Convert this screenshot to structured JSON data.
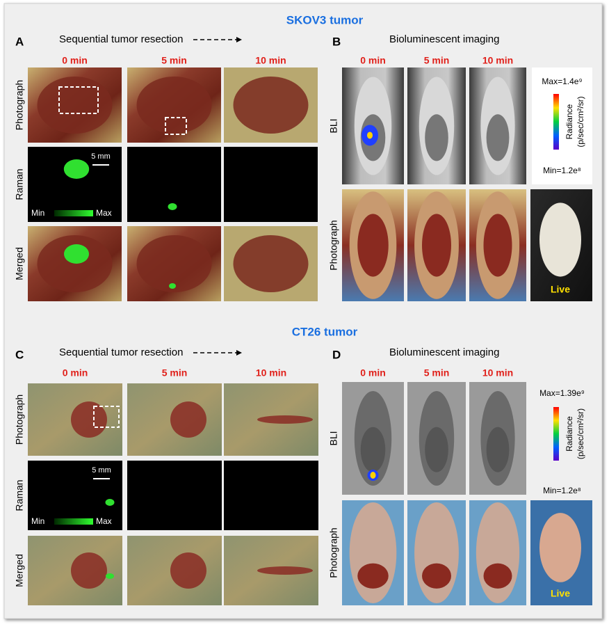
{
  "sections": [
    {
      "title": "SKOV3 tumor",
      "left": {
        "letter": "A",
        "heading": "Sequential tumor resection",
        "columns": [
          "0 min",
          "5 min",
          "10 min"
        ],
        "rows": [
          "Photograph",
          "Raman",
          "Merged"
        ],
        "scale_bar": "5 mm",
        "colorbar": [
          "Min",
          "Max"
        ]
      },
      "right": {
        "letter": "B",
        "heading": "Bioluminescent imaging",
        "columns": [
          "0 min",
          "5 min",
          "10 min"
        ],
        "rows": [
          "BLI",
          "Photograph"
        ],
        "max": "Max=1.4e⁹",
        "min": "Min=1.2e⁸",
        "unit": "Radiance",
        "unit_detail": "(p/sec/cm²/sr)",
        "live": "Live"
      }
    },
    {
      "title": "CT26 tumor",
      "left": {
        "letter": "C",
        "heading": "Sequential tumor resection",
        "columns": [
          "0 min",
          "5 min",
          "10 min"
        ],
        "rows": [
          "Photograph",
          "Raman",
          "Merged"
        ],
        "scale_bar": "5 mm",
        "colorbar": [
          "Min",
          "Max"
        ]
      },
      "right": {
        "letter": "D",
        "heading": "Bioluminescent imaging",
        "columns": [
          "0 min",
          "5 min",
          "10 min"
        ],
        "rows": [
          "BLI",
          "Photograph"
        ],
        "max": "Max=1.39e⁹",
        "min": "Min=1.2e⁸",
        "unit": "Radiance",
        "unit_detail": "(p/sec/cm²/sr)",
        "live": "Live"
      }
    }
  ]
}
